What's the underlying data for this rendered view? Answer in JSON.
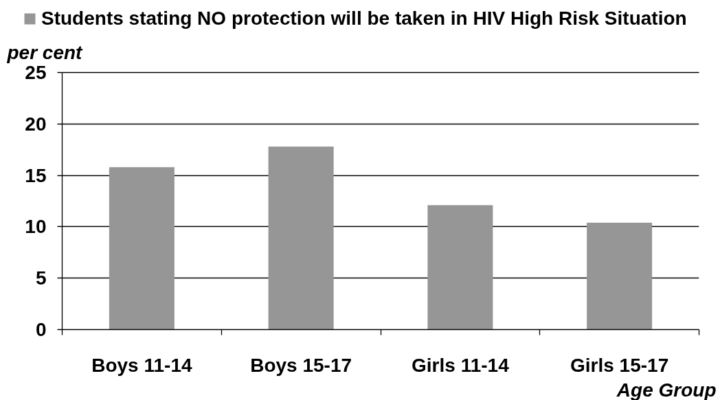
{
  "chart_data": {
    "type": "bar",
    "categories": [
      "Boys 11-14",
      "Boys 15-17",
      "Girls 11-14",
      "Girls 15-17"
    ],
    "series": [
      {
        "name": "Students stating NO protection will be taken in HIV High Risk Situation",
        "color": "#969696",
        "values": [
          15.8,
          17.8,
          12.1,
          10.4
        ]
      }
    ],
    "ylabel": "per cent",
    "xlabel": "Age Group",
    "ylim": [
      0,
      25
    ],
    "yticks": [
      0,
      5,
      10,
      15,
      20,
      25
    ],
    "grid": "y",
    "legend": "top"
  }
}
